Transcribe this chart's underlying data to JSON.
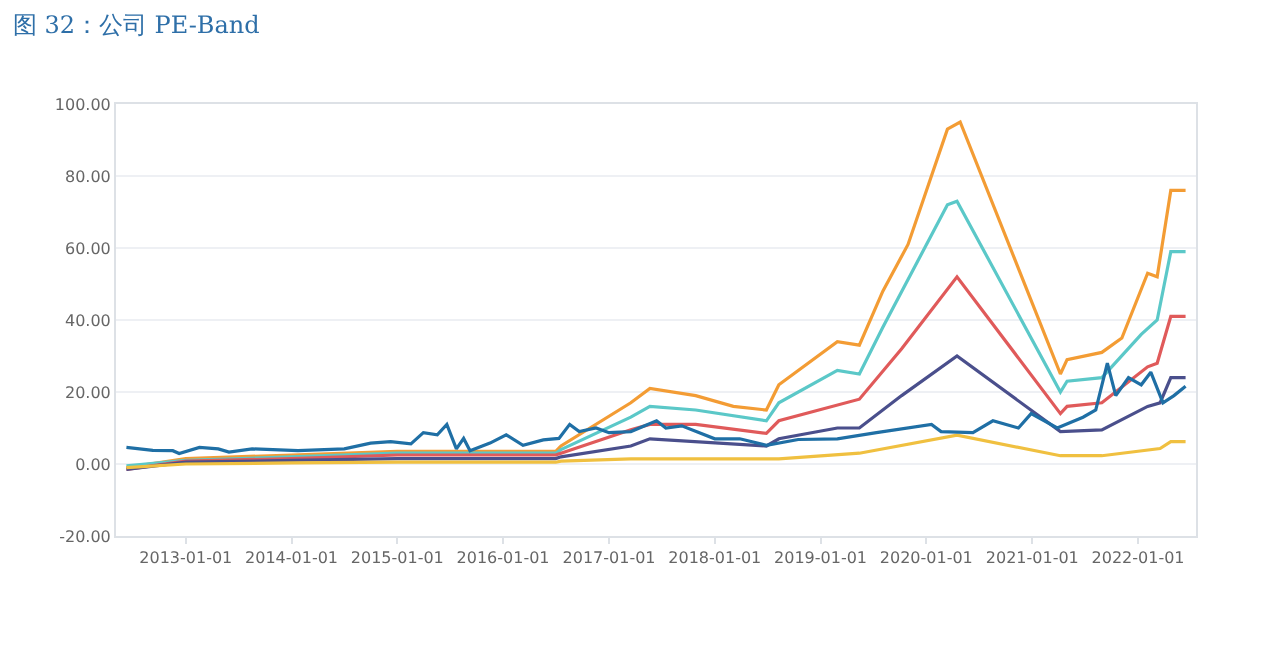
{
  "chart_data": {
    "type": "line",
    "title": "图 32：公司 PE-Band",
    "xlim": [
      "2012-05-05",
      "2022-07-20"
    ],
    "xticks": [
      "2013-01-01",
      "2014-01-01",
      "2015-01-01",
      "2016-01-01",
      "2017-01-01",
      "2018-01-01",
      "2019-01-01",
      "2020-01-01",
      "2021-01-01",
      "2022-01-01"
    ],
    "ylim": [
      -20,
      100
    ],
    "yticks": [
      {
        "value": -20,
        "label": "-20.00"
      },
      {
        "value": 0,
        "label": "0.00"
      },
      {
        "value": 20,
        "label": "20.00"
      },
      {
        "value": 40,
        "label": "40.00"
      },
      {
        "value": 60,
        "label": "60.00"
      },
      {
        "value": 80,
        "label": "80.00"
      },
      {
        "value": 100,
        "label": "100.00"
      }
    ],
    "grid": "y",
    "marker": "none",
    "line_style": "solid",
    "series": [
      {
        "color": "#f39c34",
        "x": [
          "2012-06-10",
          "2013-01-01",
          "2014-01-01",
          "2015-01-01",
          "2016-07-01",
          "2016-07-19",
          "2017-03-17",
          "2017-05-22",
          "2017-10-27",
          "2018-03-06",
          "2018-06-28",
          "2018-08-10",
          "2019-02-28",
          "2019-05-15",
          "2019-08-04",
          "2019-10-30",
          "2020-03-14",
          "2020-04-27",
          "2021-04-08",
          "2021-05-01",
          "2021-08-29",
          "2021-11-06",
          "2022-02-03",
          "2022-03-08",
          "2022-04-24",
          "2022-06-14"
        ],
        "values": [
          -1,
          1.5,
          2.5,
          3.5,
          3.5,
          5,
          17,
          21,
          19,
          16,
          15,
          22,
          34,
          33,
          48,
          61,
          93,
          95,
          25,
          29,
          31,
          35,
          53,
          52,
          76,
          76
        ]
      },
      {
        "color": "#5bc8c8",
        "x": [
          "2012-06-10",
          "2013-01-01",
          "2014-01-01",
          "2015-01-01",
          "2016-07-01",
          "2016-07-19",
          "2017-03-17",
          "2017-05-22",
          "2017-10-27",
          "2018-06-28",
          "2018-08-10",
          "2019-02-28",
          "2019-05-15",
          "2019-08-04",
          "2020-03-14",
          "2020-04-16",
          "2021-04-08",
          "2021-05-01",
          "2021-08-29",
          "2022-01-12",
          "2022-03-08",
          "2022-04-24",
          "2022-06-14"
        ],
        "values": [
          -0.5,
          1,
          2,
          3,
          3,
          4,
          13,
          16,
          15,
          12,
          17,
          26,
          25,
          38,
          72,
          73,
          20,
          23,
          24,
          36,
          40,
          59,
          59
        ]
      },
      {
        "color": "#e05a5a",
        "x": [
          "2012-06-10",
          "2013-01-01",
          "2014-01-01",
          "2015-01-01",
          "2016-07-01",
          "2016-07-19",
          "2017-03-17",
          "2017-05-22",
          "2017-10-27",
          "2018-06-28",
          "2018-08-10",
          "2019-05-15",
          "2019-10-08",
          "2020-04-16",
          "2021-04-08",
          "2021-05-01",
          "2021-08-29",
          "2022-02-03",
          "2022-03-08",
          "2022-04-24",
          "2022-06-14"
        ],
        "values": [
          -1.5,
          0.8,
          1.5,
          2.5,
          2.5,
          3,
          9.5,
          11,
          11,
          8.5,
          12,
          18,
          32,
          52,
          14,
          16,
          17,
          27,
          28,
          41,
          41
        ]
      },
      {
        "color": "#4a4f8c",
        "x": [
          "2012-06-10",
          "2013-01-01",
          "2014-01-01",
          "2015-01-01",
          "2016-07-01",
          "2016-07-19",
          "2017-03-17",
          "2017-05-22",
          "2018-06-28",
          "2018-08-10",
          "2019-02-28",
          "2019-05-15",
          "2019-10-08",
          "2020-04-16",
          "2021-04-08",
          "2021-08-29",
          "2022-02-03",
          "2022-03-18",
          "2022-04-24",
          "2022-06-14"
        ],
        "values": [
          -1.5,
          0.5,
          1,
          1.5,
          1.5,
          2,
          5,
          7,
          5,
          7,
          10,
          10,
          19,
          30,
          9,
          9.5,
          16,
          17,
          24,
          24
        ]
      },
      {
        "color": "#f0c040",
        "x": [
          "2012-06-10",
          "2013-01-01",
          "2014-01-01",
          "2015-01-01",
          "2016-07-01",
          "2016-07-19",
          "2017-03-17",
          "2018-08-10",
          "2019-05-15",
          "2020-04-16",
          "2021-04-08",
          "2021-08-29",
          "2022-03-18",
          "2022-04-24",
          "2022-06-14"
        ],
        "values": [
          -1,
          0,
          0.3,
          0.5,
          0.5,
          0.8,
          1.4,
          1.4,
          3,
          8,
          2.3,
          2.3,
          4.3,
          6.2,
          6.2
        ]
      },
      {
        "color": "#1f6fa5",
        "x": [
          "2012-06-10",
          "2012-09-09",
          "2012-11-17",
          "2012-12-09",
          "2013-02-17",
          "2013-04-23",
          "2013-05-30",
          "2013-08-18",
          "2014-01-23",
          "2014-07-02",
          "2014-10-01",
          "2014-12-09",
          "2015-02-17",
          "2015-04-01",
          "2015-05-19",
          "2015-06-21",
          "2015-07-24",
          "2015-08-18",
          "2015-09-09",
          "2015-11-17",
          "2016-01-12",
          "2016-03-10",
          "2016-05-19",
          "2016-07-12",
          "2016-08-18",
          "2016-09-20",
          "2016-11-17",
          "2017-01-01",
          "2017-03-17",
          "2017-06-14",
          "2017-07-16",
          "2017-09-09",
          "2018-01-01",
          "2018-03-28",
          "2018-06-28",
          "2018-10-16",
          "2019-02-28",
          "2019-07-13",
          "2020-01-19",
          "2020-02-21",
          "2020-06-10",
          "2020-08-18",
          "2020-11-14",
          "2020-12-28",
          "2021-03-28",
          "2021-06-25",
          "2021-08-08",
          "2021-09-17",
          "2021-10-16",
          "2021-11-29",
          "2022-01-12",
          "2022-02-14",
          "2022-03-28",
          "2022-05-05",
          "2022-06-14"
        ],
        "values": [
          4.6,
          3.8,
          3.7,
          2.9,
          4.6,
          4.2,
          3.3,
          4.2,
          3.7,
          4.2,
          5.8,
          6.2,
          5.6,
          8.7,
          8.1,
          11,
          4.2,
          7.1,
          3.7,
          5.8,
          8.1,
          5.2,
          6.7,
          7.1,
          11,
          9,
          10,
          8.7,
          9,
          12,
          10,
          10.6,
          7,
          7,
          5.2,
          6.8,
          7,
          8.7,
          11,
          9,
          8.7,
          12,
          10,
          14,
          10,
          13,
          15,
          28,
          19,
          24,
          22,
          25.5,
          17,
          19,
          21.6
        ]
      }
    ]
  }
}
